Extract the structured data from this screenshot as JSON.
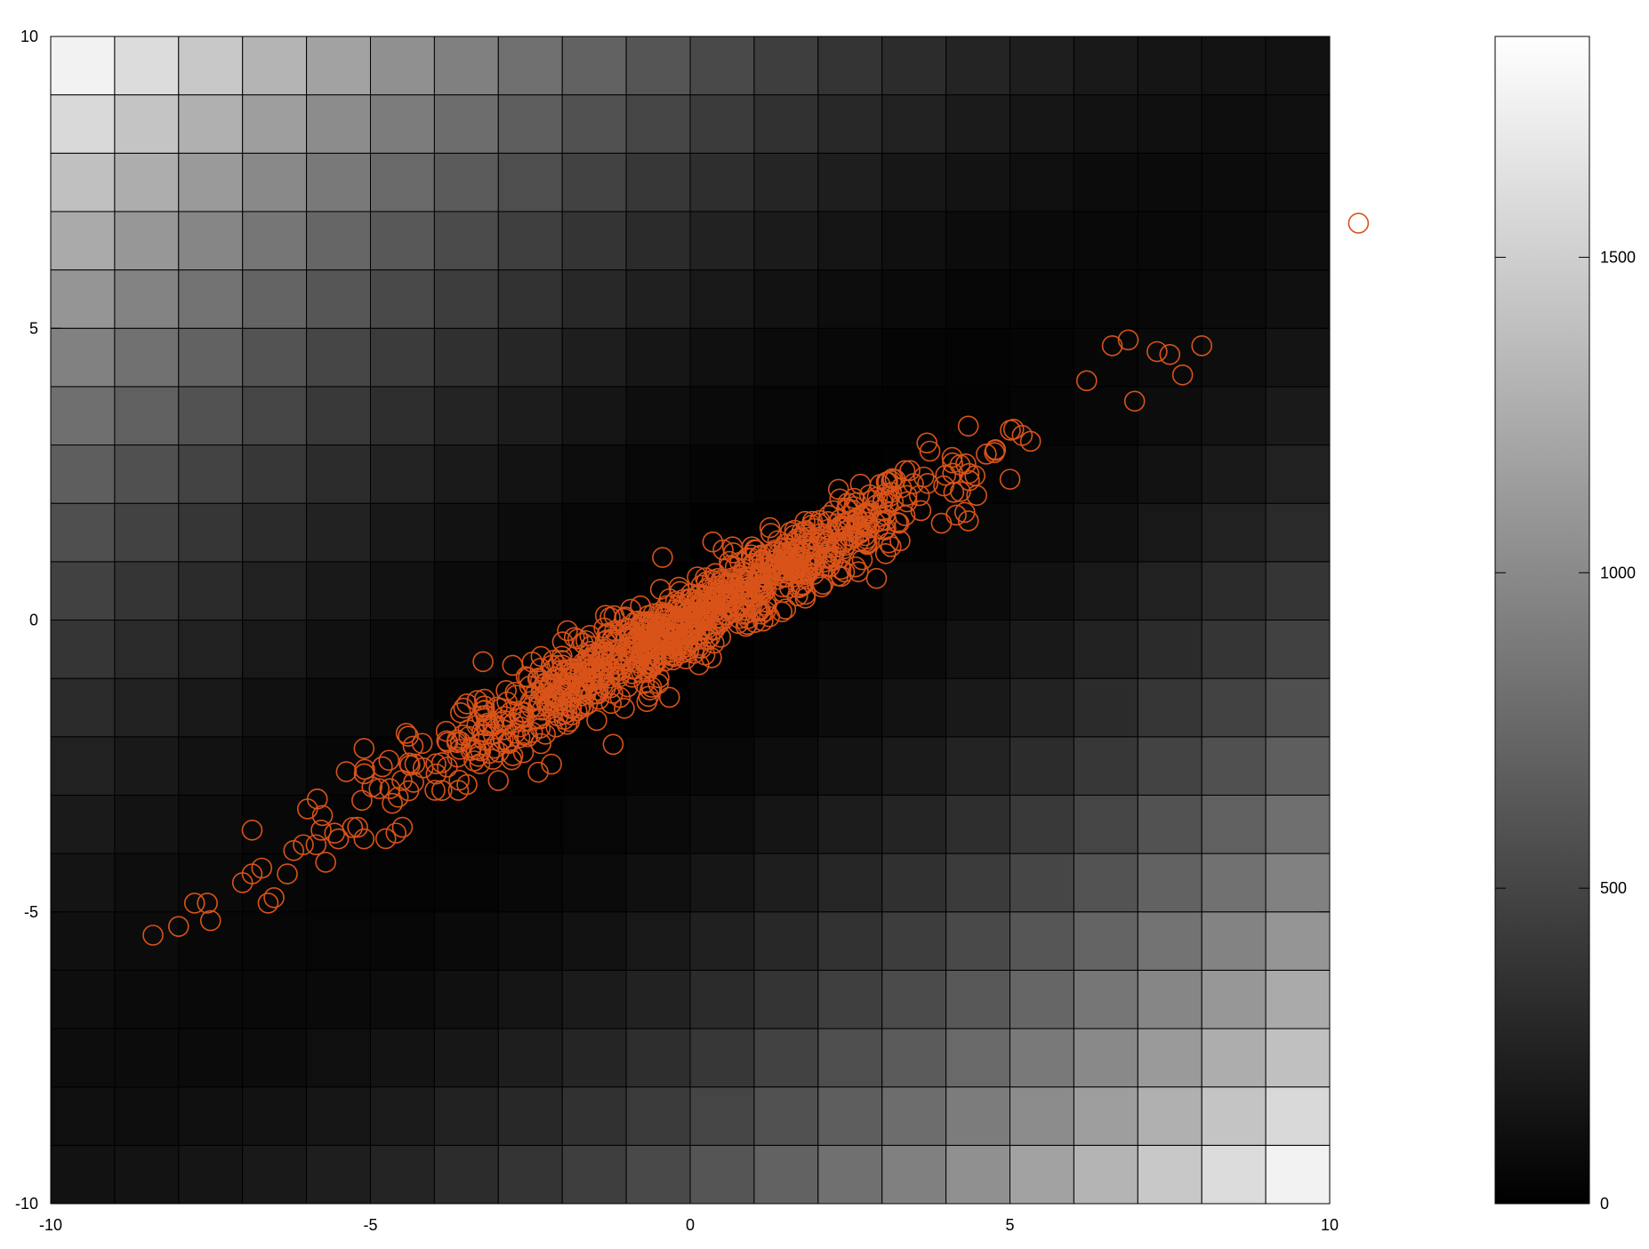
{
  "chart_data": [
    {
      "type": "heatmap",
      "grid": false,
      "xlim": [
        -10,
        10
      ],
      "ylim": [
        -10,
        10
      ],
      "x_ticks": [
        -10,
        -5,
        0,
        5,
        10
      ],
      "y_ticks": [
        -10,
        -5,
        0,
        5,
        10
      ],
      "x_tick_labels": [
        "-10",
        "-5",
        "0",
        "5",
        "10"
      ],
      "y_tick_labels": [
        "-10",
        "-5",
        "0",
        "5",
        "10"
      ],
      "heatmap": {
        "x_start": -10,
        "x_end": 10,
        "nx": 20,
        "y_start": -10,
        "y_end": 10,
        "ny": 20,
        "colormap": "gray",
        "cell_edge_color": "#000000",
        "function": "(x - 0.8y)^2 + (y - 0.45x)^2 scaled to a max of about 1850"
      },
      "overlay_scatter": {
        "marker": "open-circle",
        "color": "#d95319",
        "count": 1000,
        "trend_slope": 0.6,
        "trend_intercept": 0,
        "spread": 0.35,
        "x_extent": [
          -8.5,
          8
        ],
        "points": [
          [
            -8.4,
            -5.4
          ],
          [
            -8.0,
            -5.25
          ],
          [
            -7.75,
            -4.85
          ],
          [
            -7.55,
            -4.85
          ],
          [
            -7.5,
            -5.15
          ],
          [
            -7.0,
            -4.5
          ],
          [
            -6.85,
            -3.6
          ],
          [
            -6.85,
            -4.35
          ],
          [
            -6.7,
            -4.25
          ],
          [
            -6.6,
            -4.85
          ],
          [
            -6.3,
            -4.35
          ],
          [
            -6.2,
            -3.95
          ],
          [
            -6.05,
            -3.85
          ],
          [
            -5.85,
            -3.85
          ],
          [
            -5.75,
            -3.35
          ],
          [
            -5.7,
            -4.15
          ],
          [
            -5.5,
            -3.75
          ],
          [
            -5.2,
            -3.55
          ],
          [
            -5.1,
            -3.75
          ],
          [
            -5.1,
            -2.2
          ],
          [
            -4.6,
            -3.65
          ],
          [
            -4.5,
            -3.55
          ],
          [
            -3.0,
            -2.75
          ],
          [
            4.35,
            1.7
          ],
          [
            6.2,
            4.1
          ],
          [
            6.6,
            4.7
          ],
          [
            6.85,
            4.8
          ],
          [
            6.95,
            3.75
          ],
          [
            7.3,
            4.6
          ],
          [
            7.5,
            4.55
          ],
          [
            7.7,
            4.2
          ],
          [
            8.0,
            4.7
          ],
          [
            10.45,
            6.8
          ]
        ]
      }
    },
    {
      "type": "colorbar",
      "colormap": "gray",
      "range": [
        0,
        1850
      ],
      "ticks": [
        0,
        500,
        1000,
        1500
      ],
      "tick_labels": [
        "0",
        "500",
        "1000",
        "1500"
      ]
    }
  ]
}
